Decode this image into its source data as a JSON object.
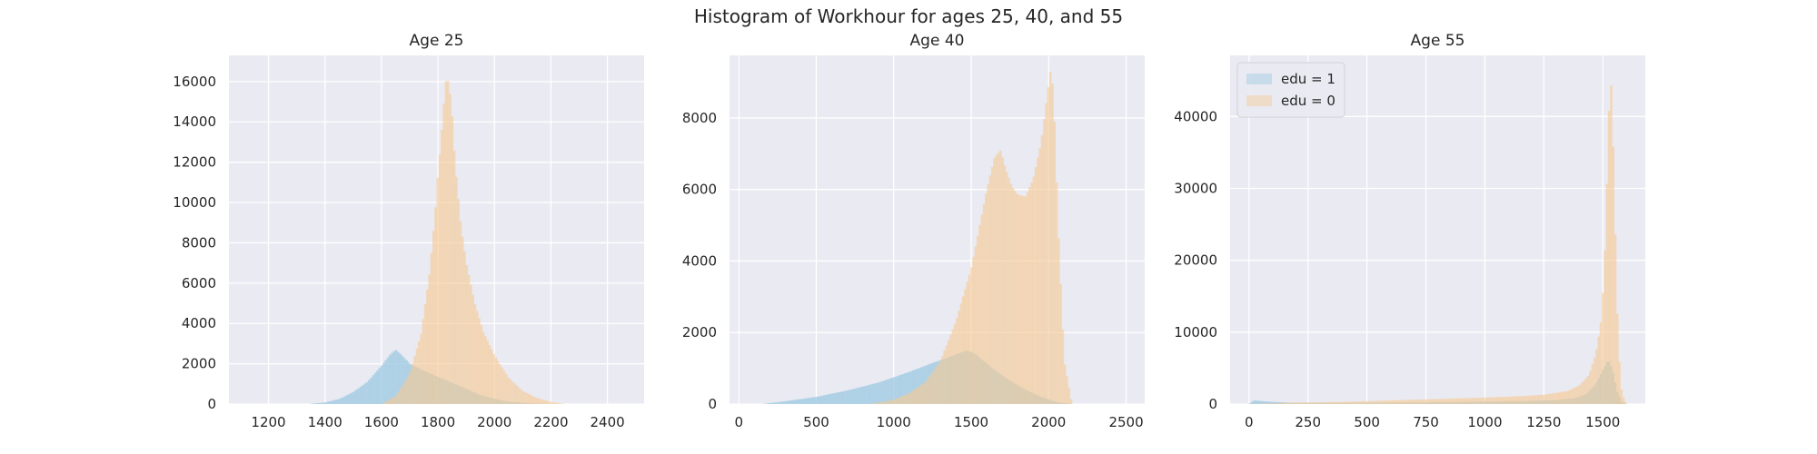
{
  "figure": {
    "suptitle": "Histogram of Workhour for ages 25, 40, and 55",
    "colors": {
      "background": "#eaeaf2",
      "grid": "#ffffff",
      "edu1": "#9ecae1",
      "edu0": "#f5c994",
      "overlap": "#c8c29a"
    }
  },
  "chart_data": [
    {
      "type": "histogram",
      "title": "Age 25",
      "xlim": [
        1060,
        2530
      ],
      "ylim": [
        0,
        17300
      ],
      "xticks": [
        1200,
        1400,
        1600,
        1800,
        2000,
        2200,
        2400
      ],
      "yticks": [
        0,
        2000,
        4000,
        6000,
        8000,
        10000,
        12000,
        14000,
        16000
      ],
      "grid": true,
      "legend": null,
      "series": [
        {
          "label": "edu = 1",
          "color": "#9ecae1",
          "x": [
            1340,
            1400,
            1450,
            1500,
            1550,
            1600,
            1630,
            1650,
            1670,
            1700,
            1750,
            1800,
            1850,
            1900,
            1950,
            2000,
            2050,
            2100,
            2150,
            2200
          ],
          "y": [
            0,
            80,
            250,
            600,
            1100,
            1900,
            2450,
            2700,
            2450,
            2000,
            1650,
            1350,
            1050,
            750,
            450,
            250,
            120,
            60,
            20,
            0
          ]
        },
        {
          "label": "edu = 0",
          "color": "#f5c994",
          "x": [
            1600,
            1650,
            1700,
            1740,
            1770,
            1790,
            1800,
            1810,
            1820,
            1830,
            1840,
            1850,
            1860,
            1880,
            1900,
            1930,
            1960,
            2000,
            2050,
            2100,
            2150,
            2200,
            2250
          ],
          "y": [
            0,
            400,
            1500,
            3500,
            6500,
            9500,
            11500,
            13000,
            14800,
            16300,
            15800,
            14300,
            12000,
            9000,
            7000,
            5000,
            3600,
            2400,
            1300,
            650,
            300,
            100,
            0
          ]
        }
      ]
    },
    {
      "type": "histogram",
      "title": "Age 40",
      "xlim": [
        -60,
        2620
      ],
      "ylim": [
        0,
        9750
      ],
      "xticks": [
        0,
        500,
        1000,
        1500,
        2000,
        2500
      ],
      "yticks": [
        0,
        2000,
        4000,
        6000,
        8000
      ],
      "grid": true,
      "legend": null,
      "series": [
        {
          "label": "edu = 1",
          "color": "#9ecae1",
          "x": [
            150,
            300,
            500,
            700,
            900,
            1100,
            1250,
            1350,
            1420,
            1470,
            1520,
            1580,
            1650,
            1750,
            1850,
            1950,
            2050,
            2150
          ],
          "y": [
            0,
            80,
            200,
            380,
            600,
            900,
            1150,
            1300,
            1420,
            1500,
            1420,
            1200,
            950,
            650,
            400,
            200,
            60,
            0
          ]
        },
        {
          "label": "edu = 0",
          "color": "#f5c994",
          "x": [
            850,
            1000,
            1100,
            1200,
            1300,
            1400,
            1500,
            1550,
            1600,
            1650,
            1690,
            1720,
            1760,
            1800,
            1850,
            1900,
            1950,
            1980,
            2010,
            2030,
            2060,
            2100,
            2150
          ],
          "y": [
            0,
            120,
            300,
            600,
            1200,
            2300,
            3800,
            4900,
            6000,
            6900,
            7100,
            6600,
            6100,
            5850,
            5800,
            6300,
            7300,
            8300,
            9300,
            8800,
            5000,
            1200,
            0
          ]
        }
      ]
    },
    {
      "type": "histogram",
      "title": "Age 55",
      "xlim": [
        -80,
        1680
      ],
      "ylim": [
        0,
        48500
      ],
      "xticks": [
        0,
        250,
        500,
        750,
        1000,
        1250,
        1500
      ],
      "yticks": [
        0,
        10000,
        20000,
        30000,
        40000
      ],
      "grid": true,
      "legend": {
        "placement": "upper-left",
        "entries": [
          {
            "label": "edu = 1",
            "color": "#9ecae1"
          },
          {
            "label": "edu = 0",
            "color": "#f5c994"
          }
        ]
      },
      "series": [
        {
          "label": "edu = 1",
          "color": "#9ecae1",
          "x": [
            0,
            20,
            100,
            200,
            400,
            600,
            800,
            1000,
            1200,
            1300,
            1380,
            1430,
            1470,
            1500,
            1520,
            1530,
            1545,
            1560,
            1580,
            1600
          ],
          "y": [
            0,
            500,
            300,
            150,
            150,
            180,
            250,
            350,
            450,
            550,
            800,
            1400,
            2800,
            4800,
            6000,
            5800,
            4200,
            1800,
            300,
            0
          ]
        },
        {
          "label": "edu = 0",
          "color": "#f5c994",
          "x": [
            0,
            200,
            400,
            600,
            800,
            1000,
            1150,
            1250,
            1350,
            1400,
            1440,
            1470,
            1490,
            1505,
            1515,
            1525,
            1532,
            1538,
            1545,
            1555,
            1565,
            1580,
            1600
          ],
          "y": [
            0,
            200,
            300,
            500,
            700,
            900,
            1100,
            1300,
            1800,
            2600,
            4000,
            7000,
            11000,
            18000,
            28000,
            40000,
            45500,
            43000,
            34000,
            20000,
            8000,
            1500,
            0
          ]
        }
      ]
    }
  ]
}
